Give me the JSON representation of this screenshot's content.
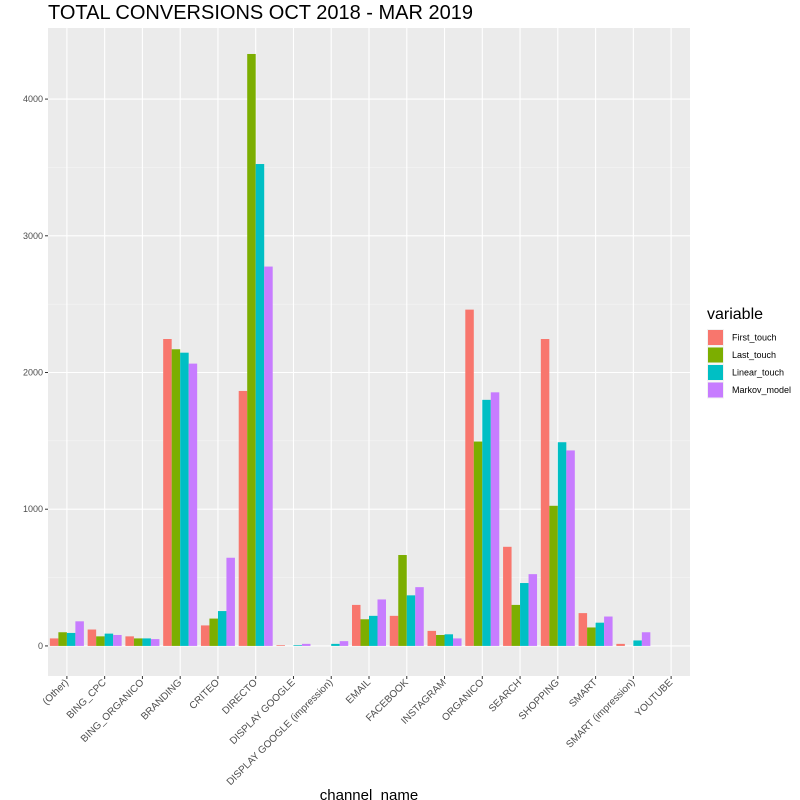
{
  "chart_data": {
    "type": "bar",
    "title": "TOTAL CONVERSIONS OCT 2018 - MAR 2019",
    "xlabel": "channel_name",
    "ylabel": "",
    "ylim": [
      -220,
      4520
    ],
    "yticks": [
      0,
      1000,
      2000,
      3000,
      4000
    ],
    "grid": true,
    "legend_position": "right",
    "legend_title": "variable",
    "categories": [
      "(Other)",
      "BING_CPC",
      "BING_ORGANICO",
      "BRANDING",
      "CRITEO",
      "DIRECTO",
      "DISPLAY GOOGLE",
      "DISPLAY GOOGLE (impression)",
      "EMAIL",
      "FACEBOOK",
      "INSTAGRAM",
      "ORGANICO",
      "SEARCH",
      "SHOPPING",
      "SMART",
      "SMART (impression)",
      "YOUTUBE"
    ],
    "series": [
      {
        "name": "First_touch",
        "color": "#F8766D",
        "values": [
          55,
          120,
          70,
          2245,
          150,
          1865,
          5,
          0,
          300,
          220,
          110,
          2460,
          725,
          2245,
          240,
          15,
          0
        ]
      },
      {
        "name": "Last_touch",
        "color": "#7CAE00",
        "values": [
          100,
          70,
          55,
          2170,
          200,
          4330,
          0,
          0,
          195,
          665,
          80,
          1495,
          300,
          1025,
          135,
          0,
          0
        ]
      },
      {
        "name": "Linear_touch",
        "color": "#00BFC4",
        "values": [
          95,
          90,
          55,
          2145,
          255,
          3525,
          5,
          15,
          220,
          370,
          85,
          1800,
          460,
          1490,
          170,
          40,
          0
        ]
      },
      {
        "name": "Markov_model",
        "color": "#C77CFF",
        "values": [
          180,
          80,
          50,
          2065,
          645,
          2775,
          15,
          35,
          340,
          430,
          55,
          1855,
          525,
          1430,
          215,
          100,
          0
        ]
      }
    ]
  }
}
